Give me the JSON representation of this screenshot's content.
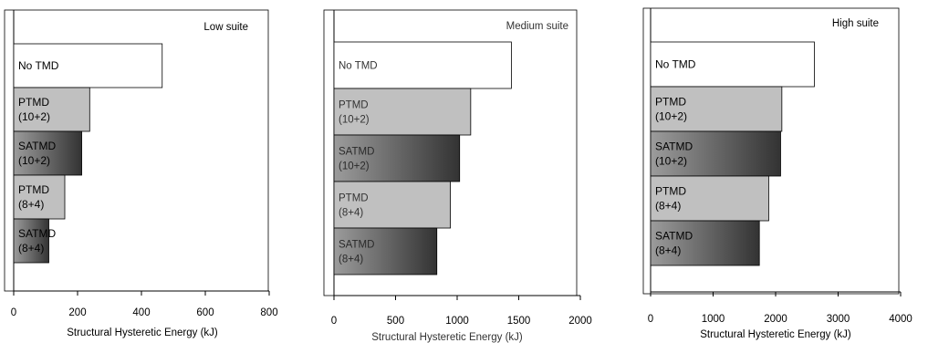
{
  "chart_data": [
    {
      "type": "bar",
      "orientation": "horizontal",
      "title": "Low suite",
      "xlabel": "Structural Hysteretic Energy (kJ)",
      "ylabel": "",
      "xlim": [
        0,
        800
      ],
      "xticks": [
        "0",
        "200",
        "400",
        "600",
        "800"
      ],
      "grid": false,
      "categories": [
        "No TMD",
        "PTMD (10+2)",
        "SATMD (10+2)",
        "PTMD (8+4)",
        "SATMD (8+4)"
      ],
      "labels": [
        [
          "No TMD"
        ],
        [
          "PTMD",
          "(10+2)"
        ],
        [
          "SATMD",
          "(10+2)"
        ],
        [
          "PTMD",
          "(8+4)"
        ],
        [
          "SATMD",
          "(8+4)"
        ]
      ],
      "fills": [
        "white",
        "light-gray",
        "dark-gradient",
        "light-gray",
        "dark-gradient"
      ],
      "values": [
        465,
        238,
        213,
        160,
        110
      ]
    },
    {
      "type": "bar",
      "orientation": "horizontal",
      "title": "Medium suite",
      "xlabel": "Structural Hysteretic Energy (kJ)",
      "ylabel": "",
      "xlim": [
        0,
        2000
      ],
      "xticks": [
        "0",
        "500",
        "1000",
        "1500",
        "2000"
      ],
      "grid": false,
      "categories": [
        "No TMD",
        "PTMD (10+2)",
        "SATMD (10+2)",
        "PTMD (8+4)",
        "SATMD (8+4)"
      ],
      "labels": [
        [
          "No TMD"
        ],
        [
          "PTMD",
          "(10+2)"
        ],
        [
          "SATMD",
          "(10+2)"
        ],
        [
          "PTMD",
          "(8+4)"
        ],
        [
          "SATMD",
          "(8+4)"
        ]
      ],
      "fills": [
        "white",
        "light-gray",
        "dark-gradient",
        "light-gray",
        "dark-gradient"
      ],
      "values": [
        1440,
        1110,
        1020,
        945,
        835
      ]
    },
    {
      "type": "bar",
      "orientation": "horizontal",
      "title": "High suite",
      "xlabel": "Structural Hysteretic Energy (kJ)",
      "ylabel": "",
      "xlim": [
        0,
        4000
      ],
      "xticks": [
        "0",
        "1000",
        "2000",
        "3000",
        "4000"
      ],
      "grid": false,
      "categories": [
        "No TMD",
        "PTMD (10+2)",
        "SATMD (10+2)",
        "PTMD (8+4)",
        "SATMD (8+4)"
      ],
      "labels": [
        [
          "No TMD"
        ],
        [
          "PTMD",
          "(10+2)"
        ],
        [
          "SATMD",
          "(10+2)"
        ],
        [
          "PTMD",
          "(8+4)"
        ],
        [
          "SATMD",
          "(8+4)"
        ]
      ],
      "fills": [
        "white",
        "light-gray",
        "dark-gradient",
        "light-gray",
        "dark-gradient"
      ],
      "values": [
        2620,
        2100,
        2080,
        1890,
        1740
      ]
    }
  ],
  "colors": {
    "axis": "#000000",
    "white_bar": "#ffffff",
    "light_bar": "#c0c0c0",
    "gradient_start": "#9c9c9c",
    "gradient_end": "#333333",
    "text": "#000000",
    "muted_text": "#333333"
  }
}
